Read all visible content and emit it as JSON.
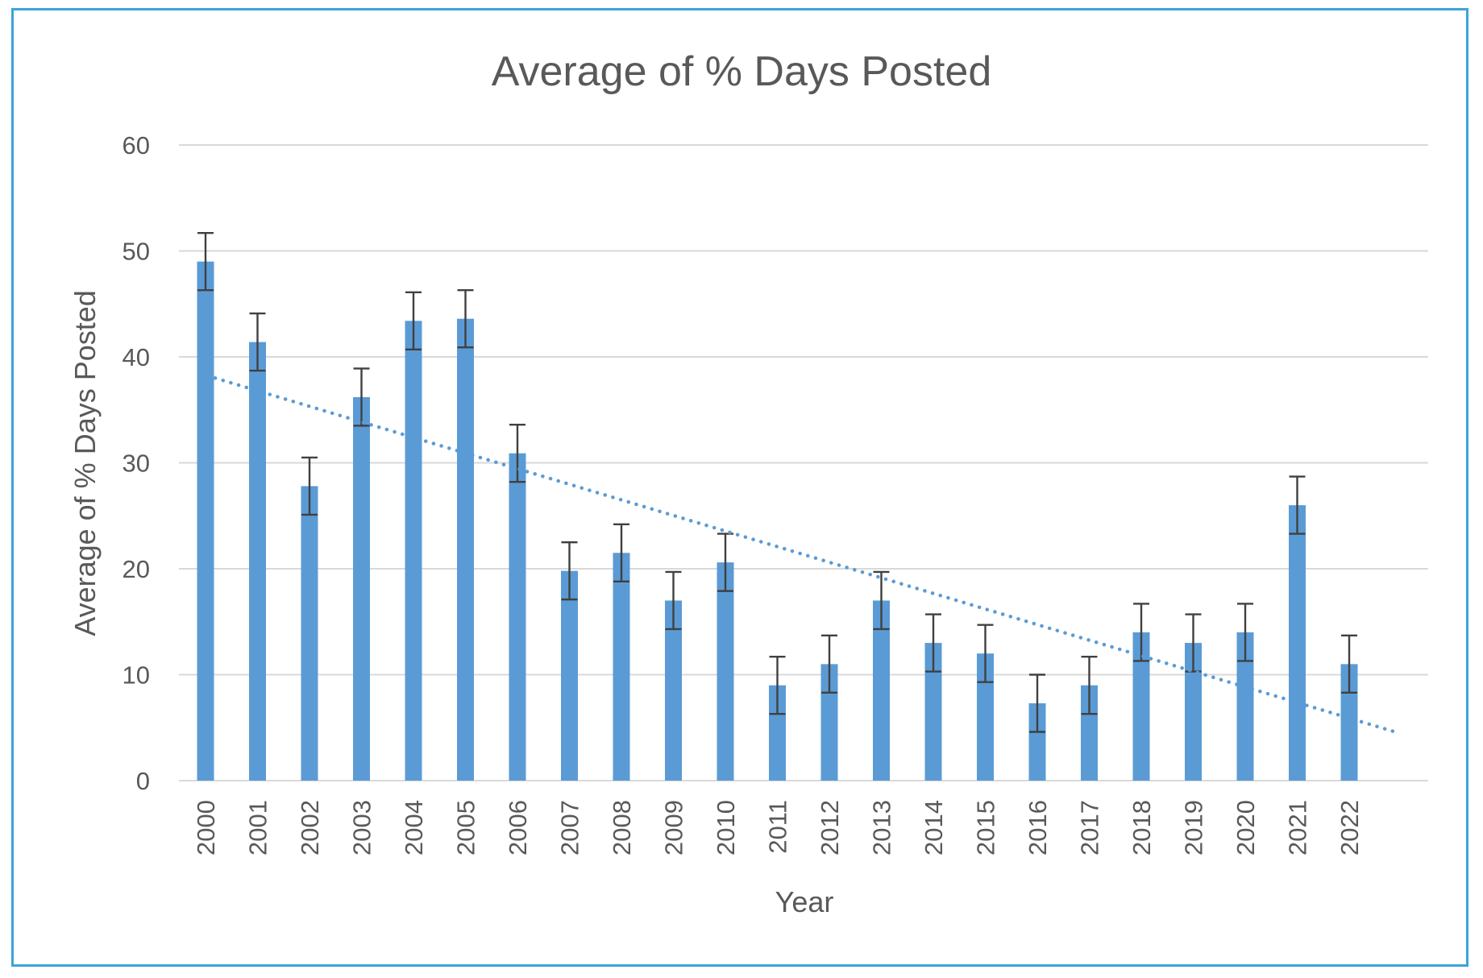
{
  "chart_data": {
    "type": "bar",
    "title": "Average of % Days Posted",
    "xlabel": "Year",
    "ylabel": "Average of % Days Posted",
    "ylim": [
      0,
      60
    ],
    "yticks": [
      "0",
      "10",
      "20",
      "30",
      "40",
      "50",
      "60"
    ],
    "grid": true,
    "legend": "none",
    "categories": [
      "2000",
      "2001",
      "2002",
      "2003",
      "2004",
      "2005",
      "2006",
      "2007",
      "2008",
      "2009",
      "2010",
      "2011",
      "2012",
      "2013",
      "2014",
      "2015",
      "2016",
      "2017",
      "2018",
      "2019",
      "2020",
      "2021",
      "2022"
    ],
    "series": [
      {
        "values": [
          49,
          41.4,
          27.8,
          36.2,
          43.4,
          43.6,
          30.9,
          19.8,
          21.5,
          17,
          20.6,
          9,
          11,
          17,
          13,
          12,
          7.3,
          9,
          14,
          13,
          14,
          26,
          11
        ],
        "error": [
          2.7,
          2.7,
          2.7,
          2.7,
          2.7,
          2.7,
          2.7,
          2.7,
          2.7,
          2.7,
          2.7,
          2.7,
          2.7,
          2.7,
          2.7,
          2.7,
          2.7,
          2.7,
          2.7,
          2.7,
          2.7,
          2.7,
          2.7
        ]
      }
    ],
    "trendline": {
      "type": "linear",
      "style": "dotted",
      "start": 38,
      "end": 4.6
    },
    "colors": {
      "bar": "#5b9bd5",
      "trendline": "#5b9bd5",
      "errorbar": "#404040",
      "grid": "#d9d9d9",
      "text": "#595959",
      "border": "#3ca3dc"
    }
  }
}
